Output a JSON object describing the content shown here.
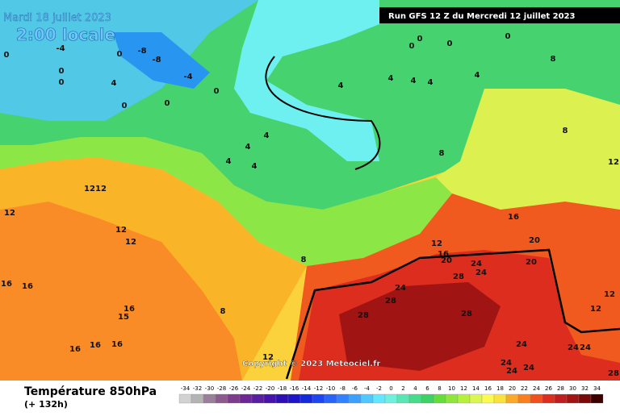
{
  "header": {
    "date": "Mardi 18 juillet 2023",
    "local_time": "2:00 locale",
    "run": "Run GFS 12 Z du Mercredi 12 juillet 2023"
  },
  "copyright": "Copyright © 2023 Meteociel.fr",
  "footer": {
    "title": "Température 850hPa",
    "lead": "(+ 132h)"
  },
  "contour_labels": [
    0,
    -4,
    0,
    -8,
    -8,
    -4,
    0,
    0,
    4,
    0,
    0,
    0,
    4,
    4,
    4,
    4,
    4,
    4,
    4,
    4,
    4,
    0,
    0,
    0,
    0,
    8,
    8,
    8,
    12,
    12,
    12,
    12,
    12,
    12,
    16,
    8,
    12,
    16,
    20,
    20,
    20,
    24,
    24,
    28,
    24,
    28,
    28,
    28,
    24,
    24,
    24,
    24,
    24,
    24,
    12,
    12,
    28,
    16,
    16,
    16,
    15,
    16,
    16,
    16,
    8,
    12
  ],
  "scale": {
    "ticks": [
      -34,
      -32,
      -30,
      -28,
      -26,
      -24,
      -22,
      -20,
      -18,
      -16,
      -14,
      -12,
      -10,
      -8,
      -6,
      -4,
      -2,
      0,
      2,
      4,
      6,
      8,
      10,
      12,
      14,
      16,
      18,
      20,
      22,
      24,
      26,
      28,
      30,
      32,
      34
    ],
    "colors": [
      "#d2d2d2",
      "#b4b4b4",
      "#9a7f9a",
      "#8c5a8c",
      "#7d3c8c",
      "#6e2896",
      "#5a1ea0",
      "#4614aa",
      "#2d0fb4",
      "#1e14c8",
      "#1428dc",
      "#1e46f0",
      "#2864fa",
      "#3282ff",
      "#3ca0ff",
      "#50c8ff",
      "#64e6ff",
      "#6ef0dc",
      "#5ae6b4",
      "#46dc8c",
      "#3cd264",
      "#64dc3c",
      "#8ce63c",
      "#b4f03c",
      "#dcf550",
      "#fafa50",
      "#fae13c",
      "#faaa28",
      "#fa7d1e",
      "#f0501e",
      "#dc2d1e",
      "#be1e1e",
      "#a01414",
      "#780a0a",
      "#3c0000"
    ]
  }
}
